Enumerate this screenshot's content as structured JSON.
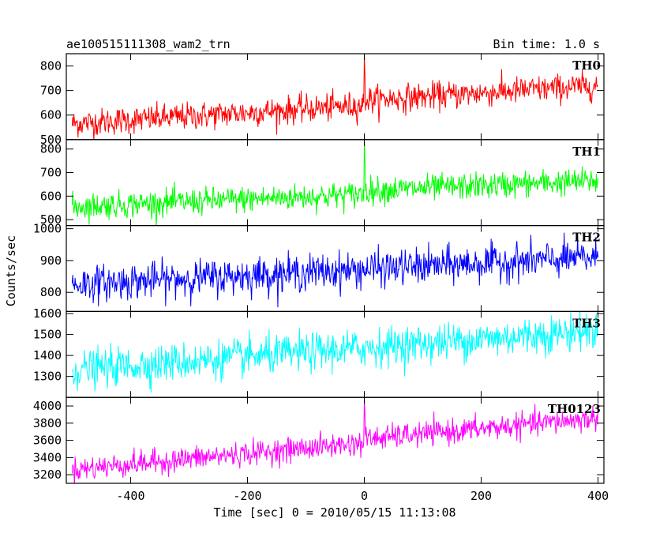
{
  "chart_data": {
    "type": "line",
    "title": "ae100515111308_wam2_trn",
    "bin_time_label": "Bin time: 1.0 s",
    "xlabel": "Time [sec] 0 = 2010/05/15 11:13:08",
    "ylabel": "Counts/sec",
    "xlim": [
      -510,
      410
    ],
    "x_ticks": [
      -400,
      -200,
      0,
      200,
      400
    ],
    "x_range": [
      -500,
      400
    ],
    "bin": 1.0,
    "panels": [
      {
        "name": "TH0",
        "color": "#ff0000",
        "ylim": [
          500,
          850
        ],
        "y_ticks": [
          500,
          600,
          700,
          800
        ],
        "trend_start": 565,
        "trend_end": 700,
        "step_at": 0,
        "step": 20,
        "noise": 28,
        "spikes": [
          {
            "x": 0,
            "y": 850
          },
          {
            "x": 1,
            "y": 760
          }
        ]
      },
      {
        "name": "TH1",
        "color": "#00ff00",
        "ylim": [
          475,
          840
        ],
        "y_ticks": [
          500,
          600,
          700,
          800
        ],
        "trend_start": 555,
        "trend_end": 650,
        "step_at": 0,
        "step": 15,
        "noise": 28,
        "spikes": [
          {
            "x": 0,
            "y": 840
          },
          {
            "x": 1,
            "y": 760
          }
        ]
      },
      {
        "name": "TH2",
        "color": "#0000ff",
        "ylim": [
          740,
          1010
        ],
        "y_ticks": [
          800,
          900,
          1000
        ],
        "trend_start": 825,
        "trend_end": 910,
        "step_at": 0,
        "step": 0,
        "noise": 28,
        "spikes": []
      },
      {
        "name": "TH3",
        "color": "#00ffff",
        "ylim": [
          1200,
          1610
        ],
        "y_ticks": [
          1300,
          1400,
          1500,
          1600
        ],
        "trend_start": 1330,
        "trend_end": 1520,
        "step_at": 0,
        "step": 0,
        "noise": 45,
        "spikes": []
      },
      {
        "name": "TH0123",
        "color": "#ff00ff",
        "ylim": [
          3100,
          4100
        ],
        "y_ticks": [
          3200,
          3400,
          3600,
          3800,
          4000
        ],
        "trend_start": 3260,
        "trend_end": 3820,
        "step_at": 0,
        "step": 40,
        "noise": 70,
        "spikes": [
          {
            "x": 0,
            "y": 4100
          },
          {
            "x": 1,
            "y": 3900
          }
        ]
      }
    ]
  }
}
